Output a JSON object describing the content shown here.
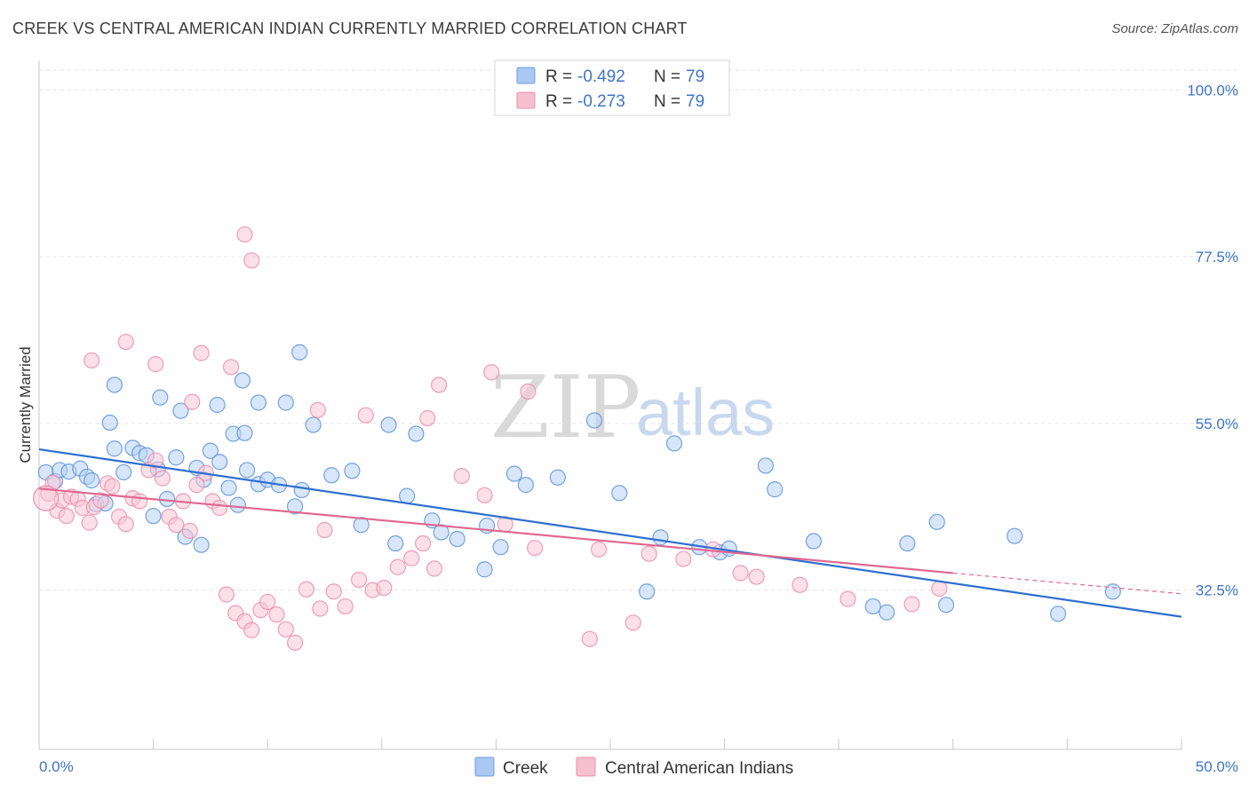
{
  "title": "CREEK VS CENTRAL AMERICAN INDIAN CURRENTLY MARRIED CORRELATION CHART",
  "source": "Source: ZipAtlas.com",
  "watermark": {
    "zip": "ZIP",
    "atlas": "atlas"
  },
  "legend": {
    "r_label": "R =",
    "n_label": "N =",
    "rows": [
      {
        "series": "Creek",
        "r": "-0.492",
        "n": "79",
        "color": "#a9c8f2",
        "stroke": "#6d9de0"
      },
      {
        "series": "Central American Indians",
        "r": "-0.273",
        "n": "79",
        "color": "#f7bfd0",
        "stroke": "#ea8fab"
      }
    ]
  },
  "colors": {
    "creek_fill": "#b7d2f4",
    "creek_stroke": "#5d93dc",
    "creek_line": "#2f6fcf",
    "cai_fill": "#f8c6d5",
    "cai_stroke": "#ec8eab",
    "cai_line": "#e0688f",
    "tick_text": "#3f74c7",
    "grid": "#e3e3e3"
  },
  "chart_data": {
    "type": "scatter",
    "title": "CREEK VS CENTRAL AMERICAN INDIAN CURRENTLY MARRIED CORRELATION CHART",
    "xlabel": "",
    "ylabel": "Currently Married",
    "xlim": [
      0,
      50
    ],
    "ylim": [
      11,
      104
    ],
    "x_ticks": [
      "0.0%",
      "50.0%"
    ],
    "y_ticks": [
      {
        "value": 32.5,
        "label": "32.5%"
      },
      {
        "value": 55.0,
        "label": "55.0%"
      },
      {
        "value": 77.5,
        "label": "77.5%"
      },
      {
        "value": 100.0,
        "label": "100.0%"
      }
    ],
    "grid": "horizontal dashed",
    "legend_position": "top-center",
    "series": [
      {
        "name": "Creek",
        "trend": {
          "x": [
            0,
            50
          ],
          "y": [
            51.5,
            28.9
          ]
        },
        "points": [
          [
            0.3,
            48.4
          ],
          [
            0.7,
            47.2
          ],
          [
            0.9,
            48.7
          ],
          [
            1.3,
            48.5
          ],
          [
            1.8,
            48.9
          ],
          [
            2.1,
            47.8
          ],
          [
            2.3,
            47.3
          ],
          [
            2.5,
            44.1
          ],
          [
            3.3,
            51.6
          ],
          [
            3.7,
            48.4
          ],
          [
            4.1,
            51.7
          ],
          [
            4.4,
            51.0
          ],
          [
            4.7,
            50.7
          ],
          [
            5.2,
            48.8
          ],
          [
            5.6,
            44.8
          ],
          [
            6.0,
            50.4
          ],
          [
            6.9,
            49.0
          ],
          [
            7.2,
            47.4
          ],
          [
            7.5,
            51.3
          ],
          [
            7.9,
            49.8
          ],
          [
            8.3,
            46.3
          ],
          [
            8.7,
            44.0
          ],
          [
            9.1,
            48.7
          ],
          [
            9.6,
            46.8
          ],
          [
            3.1,
            55.1
          ],
          [
            3.3,
            60.2
          ],
          [
            5.3,
            58.5
          ],
          [
            6.2,
            56.7
          ],
          [
            7.8,
            57.5
          ],
          [
            8.5,
            53.6
          ],
          [
            8.9,
            60.8
          ],
          [
            9.0,
            53.7
          ],
          [
            9.6,
            57.8
          ],
          [
            10.0,
            47.4
          ],
          [
            10.5,
            46.7
          ],
          [
            10.8,
            57.8
          ],
          [
            11.2,
            43.8
          ],
          [
            11.5,
            46.0
          ],
          [
            11.4,
            64.6
          ],
          [
            12.0,
            54.8
          ],
          [
            12.8,
            48.0
          ],
          [
            13.7,
            48.6
          ],
          [
            15.3,
            54.8
          ],
          [
            16.1,
            45.2
          ],
          [
            16.5,
            53.6
          ],
          [
            14.1,
            41.3
          ],
          [
            15.6,
            38.8
          ],
          [
            17.2,
            41.9
          ],
          [
            17.6,
            40.3
          ],
          [
            18.3,
            39.4
          ],
          [
            19.6,
            41.2
          ],
          [
            20.2,
            38.3
          ],
          [
            19.5,
            35.3
          ],
          [
            20.8,
            48.2
          ],
          [
            21.3,
            46.7
          ],
          [
            22.7,
            47.7
          ],
          [
            24.3,
            55.4
          ],
          [
            25.4,
            45.6
          ],
          [
            26.6,
            32.3
          ],
          [
            27.2,
            39.6
          ],
          [
            27.8,
            52.3
          ],
          [
            28.9,
            38.3
          ],
          [
            29.8,
            37.6
          ],
          [
            30.2,
            38.1
          ],
          [
            31.8,
            49.3
          ],
          [
            32.2,
            46.1
          ],
          [
            33.9,
            39.1
          ],
          [
            36.5,
            30.3
          ],
          [
            37.1,
            29.5
          ],
          [
            38.0,
            38.8
          ],
          [
            39.3,
            41.7
          ],
          [
            39.7,
            30.5
          ],
          [
            42.7,
            39.8
          ],
          [
            44.6,
            29.3
          ],
          [
            47.0,
            32.3
          ],
          [
            2.9,
            44.2
          ],
          [
            5.0,
            42.5
          ],
          [
            6.4,
            39.7
          ],
          [
            7.1,
            38.6
          ]
        ]
      },
      {
        "name": "Central American Indians",
        "trend": {
          "x": [
            0,
            40
          ],
          "y": [
            46.2,
            34.8
          ]
        },
        "trend_extension": {
          "x": [
            40,
            50
          ],
          "y": [
            34.8,
            32.0
          ]
        },
        "points": [
          [
            0.4,
            45.5
          ],
          [
            0.6,
            47.0
          ],
          [
            0.8,
            43.2
          ],
          [
            1.0,
            44.6
          ],
          [
            1.2,
            42.5
          ],
          [
            1.4,
            45.1
          ],
          [
            1.7,
            44.8
          ],
          [
            1.9,
            43.6
          ],
          [
            2.2,
            41.6
          ],
          [
            2.4,
            43.7
          ],
          [
            2.7,
            44.6
          ],
          [
            3.0,
            46.9
          ],
          [
            3.2,
            46.5
          ],
          [
            3.5,
            42.4
          ],
          [
            3.8,
            41.4
          ],
          [
            4.1,
            44.9
          ],
          [
            4.4,
            44.5
          ],
          [
            4.8,
            48.7
          ],
          [
            5.1,
            50.0
          ],
          [
            5.4,
            47.6
          ],
          [
            5.7,
            42.4
          ],
          [
            6.0,
            41.3
          ],
          [
            6.3,
            44.5
          ],
          [
            6.6,
            40.5
          ],
          [
            6.9,
            46.7
          ],
          [
            7.3,
            48.3
          ],
          [
            7.6,
            44.5
          ],
          [
            7.9,
            43.6
          ],
          [
            8.2,
            31.9
          ],
          [
            8.6,
            29.4
          ],
          [
            9.0,
            28.3
          ],
          [
            9.3,
            27.1
          ],
          [
            9.7,
            29.8
          ],
          [
            10.0,
            30.9
          ],
          [
            10.4,
            29.2
          ],
          [
            10.8,
            27.2
          ],
          [
            11.2,
            25.4
          ],
          [
            11.7,
            32.6
          ],
          [
            12.3,
            30.0
          ],
          [
            12.9,
            32.3
          ],
          [
            13.4,
            30.3
          ],
          [
            14.0,
            33.9
          ],
          [
            14.6,
            32.5
          ],
          [
            15.1,
            32.8
          ],
          [
            15.7,
            35.6
          ],
          [
            16.3,
            36.8
          ],
          [
            16.8,
            38.8
          ],
          [
            17.3,
            35.4
          ],
          [
            18.5,
            47.9
          ],
          [
            19.5,
            45.3
          ],
          [
            20.4,
            41.4
          ],
          [
            21.7,
            38.2
          ],
          [
            24.5,
            38.0
          ],
          [
            26.7,
            37.4
          ],
          [
            28.2,
            36.7
          ],
          [
            29.5,
            38.0
          ],
          [
            30.7,
            34.8
          ],
          [
            31.4,
            34.3
          ],
          [
            33.3,
            33.2
          ],
          [
            35.4,
            31.3
          ],
          [
            38.2,
            30.6
          ],
          [
            39.4,
            32.7
          ],
          [
            26.0,
            28.1
          ],
          [
            24.1,
            25.9
          ],
          [
            6.7,
            57.9
          ],
          [
            5.1,
            63.0
          ],
          [
            3.8,
            66.0
          ],
          [
            2.3,
            63.5
          ],
          [
            7.1,
            64.5
          ],
          [
            8.4,
            62.6
          ],
          [
            9.0,
            80.5
          ],
          [
            9.3,
            77.0
          ],
          [
            12.2,
            56.8
          ],
          [
            14.3,
            56.1
          ],
          [
            17.0,
            55.7
          ],
          [
            17.5,
            60.2
          ],
          [
            19.8,
            61.9
          ],
          [
            21.4,
            59.3
          ],
          [
            12.5,
            40.6
          ]
        ]
      }
    ]
  },
  "bottom_legend": [
    {
      "label": "Creek"
    },
    {
      "label": "Central American Indians"
    }
  ]
}
